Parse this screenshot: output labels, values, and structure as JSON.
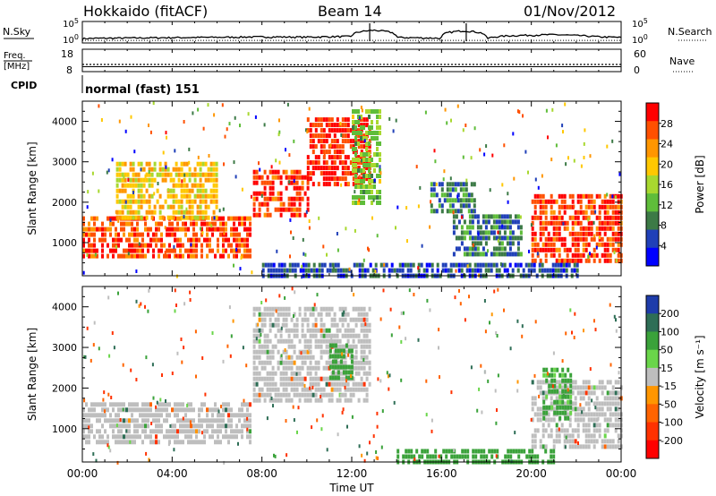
{
  "header": {
    "station": "Hokkaido (fitACF)",
    "beam": "Beam 14",
    "date": "01/Nov/2012"
  },
  "chart_data": [
    {
      "type": "line",
      "panel": "nsky-nsearch",
      "left_label": "N.Sky",
      "right_label": "N.Search",
      "left_ticks": [
        "10^5",
        "10^0"
      ],
      "right_ticks": [
        "10^5",
        "10^0"
      ],
      "scale": "log",
      "ylim": [
        1,
        100000
      ],
      "x": [
        0,
        2,
        4,
        6,
        8,
        10,
        12,
        13,
        14,
        16,
        17,
        18,
        19,
        20,
        21,
        22,
        23,
        24
      ],
      "series": [
        {
          "values": [
            10,
            14,
            18,
            22,
            30,
            25,
            40,
            2000,
            20,
            12,
            1500,
            8,
            60,
            90,
            120,
            70,
            30,
            20
          ]
        }
      ]
    },
    {
      "type": "line",
      "panel": "freq-nave",
      "left_label": "Freq.",
      "left_unit": "[MHz]",
      "right_label": "Nave",
      "left_ticks": [
        "18",
        "8"
      ],
      "right_ticks": [
        "60",
        "0"
      ],
      "ylim": [
        8,
        18
      ],
      "x": [
        0,
        8,
        10,
        12,
        14,
        16,
        20,
        24
      ],
      "series": [
        {
          "values": [
            11.2,
            11.2,
            11.0,
            11.3,
            11.2,
            11.2,
            11.2,
            11.2
          ]
        }
      ]
    },
    {
      "type": "table",
      "panel": "cpid",
      "label": "CPID",
      "value": "normal (fast) 151"
    },
    {
      "type": "heatmap",
      "panel": "power",
      "ylabel": "Slant Range [km]",
      "yticks": [
        1000,
        2000,
        3000,
        4000
      ],
      "ylim": [
        180,
        4500
      ],
      "colorbar_label": "Power [dB]",
      "colorbar_ticks": [
        4,
        8,
        12,
        16,
        20,
        24,
        28
      ],
      "colorbar_range": [
        0,
        32
      ],
      "colors": [
        "#0000ff",
        "#2040b8",
        "#3c7a46",
        "#5fbd3a",
        "#a8d82f",
        "#ffc800",
        "#ff9600",
        "#ff5000",
        "#ff0000"
      ],
      "blobs": [
        {
          "t0": 0.0,
          "t1": 7.5,
          "r0": 650,
          "r1": 1650,
          "value": 27
        },
        {
          "t0": 1.5,
          "t1": 6.0,
          "r0": 1600,
          "r1": 3000,
          "value": 20
        },
        {
          "t0": 7.6,
          "t1": 10.0,
          "r0": 1650,
          "r1": 2800,
          "value": 28
        },
        {
          "t0": 10.0,
          "t1": 12.8,
          "r0": 2500,
          "r1": 4100,
          "value": 29
        },
        {
          "t0": 12.0,
          "t1": 13.3,
          "r0": 2000,
          "r1": 4300,
          "value": 14
        },
        {
          "t0": 15.5,
          "t1": 17.5,
          "r0": 1800,
          "r1": 2500,
          "value": 9
        },
        {
          "t0": 16.5,
          "t1": 19.5,
          "r0": 700,
          "r1": 1700,
          "value": 8
        },
        {
          "t0": 20.0,
          "t1": 24.0,
          "r0": 600,
          "r1": 2200,
          "value": 28
        },
        {
          "t0": 8.0,
          "t1": 22.0,
          "r0": 200,
          "r1": 500,
          "value": 6
        }
      ]
    },
    {
      "type": "heatmap",
      "panel": "velocity",
      "ylabel": "Slant Range [km]",
      "yticks": [
        1000,
        2000,
        3000,
        4000
      ],
      "ylim": [
        180,
        4500
      ],
      "colorbar_label": "Velocity [m s⁻¹]",
      "colorbar_ticks": [
        200,
        100,
        50,
        15,
        -15,
        -50,
        -100,
        -200
      ],
      "colors": [
        "#1e3caa",
        "#2e6e56",
        "#3aa23a",
        "#6ad64a",
        "#bebebe",
        "#ff9600",
        "#ff6400",
        "#ff3200",
        "#ff0000"
      ],
      "blobs": [
        {
          "t0": 0.0,
          "t1": 7.5,
          "r0": 650,
          "r1": 1650,
          "value": 0
        },
        {
          "t0": 7.6,
          "t1": 12.8,
          "r0": 1650,
          "r1": 4000,
          "value": 0
        },
        {
          "t0": 11.0,
          "t1": 12.0,
          "r0": 2300,
          "r1": 3100,
          "value": 60
        },
        {
          "t0": 20.0,
          "t1": 24.0,
          "r0": 600,
          "r1": 2200,
          "value": 0
        },
        {
          "t0": 20.5,
          "t1": 21.8,
          "r0": 1300,
          "r1": 2500,
          "value": 40
        },
        {
          "t0": 14.0,
          "t1": 21.0,
          "r0": 200,
          "r1": 500,
          "value": 60
        }
      ]
    }
  ],
  "xaxis": {
    "label": "Time UT",
    "ticks": [
      "00:00",
      "04:00",
      "08:00",
      "12:00",
      "16:00",
      "20:00",
      "00:00"
    ],
    "xlim": [
      0,
      24
    ]
  }
}
